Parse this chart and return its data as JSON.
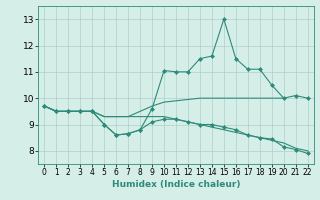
{
  "xlabel": "Humidex (Indice chaleur)",
  "x_values": [
    0,
    1,
    2,
    3,
    4,
    5,
    6,
    7,
    8,
    9,
    10,
    11,
    12,
    13,
    14,
    15,
    16,
    17,
    18,
    19,
    20,
    21,
    22
  ],
  "line1_y": [
    9.7,
    9.5,
    9.5,
    9.5,
    9.5,
    9.0,
    8.6,
    8.65,
    8.8,
    9.6,
    11.05,
    11.0,
    11.0,
    11.5,
    11.6,
    13.0,
    11.5,
    11.1,
    11.1,
    10.5,
    10.0,
    10.1,
    10.0
  ],
  "line2_y": [
    9.7,
    9.5,
    9.5,
    9.5,
    9.5,
    9.3,
    9.3,
    9.3,
    9.5,
    9.7,
    9.85,
    9.9,
    9.95,
    10.0,
    10.0,
    10.0,
    10.0,
    10.0,
    10.0,
    10.0,
    10.0,
    null,
    null
  ],
  "line3_y": [
    9.7,
    9.5,
    9.5,
    9.5,
    9.5,
    9.3,
    9.3,
    9.3,
    9.3,
    9.3,
    9.3,
    9.2,
    9.1,
    9.0,
    8.9,
    8.8,
    8.7,
    8.6,
    8.5,
    8.4,
    8.3,
    8.1,
    8.0
  ],
  "line4_y": [
    9.7,
    9.5,
    9.5,
    9.5,
    9.5,
    9.0,
    8.6,
    8.65,
    8.8,
    9.1,
    9.2,
    9.2,
    9.1,
    9.0,
    9.0,
    8.9,
    8.8,
    8.6,
    8.5,
    8.45,
    8.15,
    8.05,
    7.9
  ],
  "line_color": "#2E8B7A",
  "bg_color": "#D6EEE8",
  "grid_color": "#B0CFCA",
  "ylim": [
    7.5,
    13.5
  ],
  "xlim": [
    -0.5,
    22.5
  ],
  "yticks": [
    8,
    9,
    10,
    11,
    12,
    13
  ],
  "xticks": [
    0,
    1,
    2,
    3,
    4,
    5,
    6,
    7,
    8,
    9,
    10,
    11,
    12,
    13,
    14,
    15,
    16,
    17,
    18,
    19,
    20,
    21,
    22
  ]
}
